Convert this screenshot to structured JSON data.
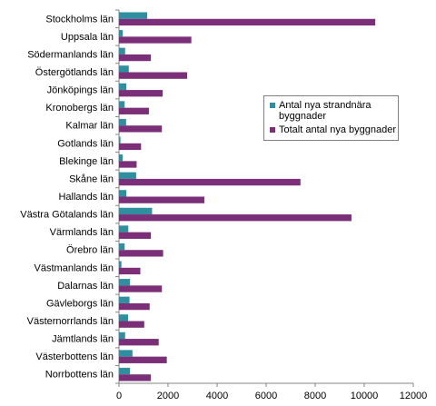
{
  "chart_data": {
    "type": "bar",
    "orientation": "horizontal",
    "categories": [
      "Stockholms län",
      "Uppsala län",
      "Södermanlands län",
      "Östergötlands län",
      "Jönköpings län",
      "Kronobergs län",
      "Kalmar län",
      "Gotlands län",
      "Blekinge län",
      "Skåne län",
      "Hallands län",
      "Västra Götalands län",
      "Värmlands län",
      "Örebro län",
      "Västmanlands län",
      "Dalarnas län",
      "Gävleborgs län",
      "Västernorrlands län",
      "Jämtlands län",
      "Västerbottens län",
      "Norrbottens län"
    ],
    "series": [
      {
        "name": "Antal nya strandnära byggnader",
        "color": "#2e8f9e",
        "values": [
          1150,
          150,
          250,
          400,
          300,
          230,
          290,
          60,
          150,
          700,
          300,
          1350,
          380,
          230,
          100,
          450,
          430,
          370,
          250,
          550,
          450
        ]
      },
      {
        "name": "Totalt antal nya byggnader",
        "color": "#7a2f78",
        "values": [
          10450,
          2950,
          1300,
          2780,
          1780,
          1220,
          1750,
          900,
          720,
          7400,
          3480,
          9480,
          1300,
          1800,
          870,
          1750,
          1250,
          1030,
          1620,
          1950,
          1300
        ]
      }
    ],
    "x_ticks": [
      "0",
      "2000",
      "4000",
      "6000",
      "8000",
      "10000",
      "12000"
    ],
    "xlim": [
      0,
      12000
    ],
    "grid": false,
    "legend_position": "right"
  }
}
